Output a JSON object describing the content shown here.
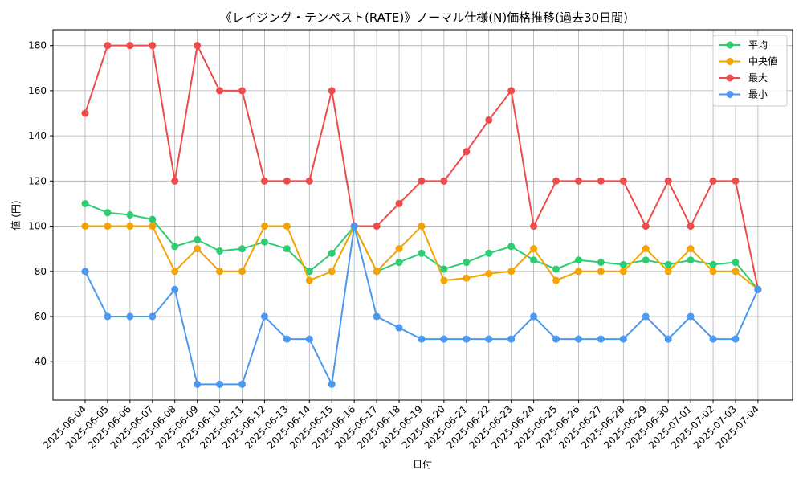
{
  "chart_data": {
    "type": "line",
    "title": "《レイジング・テンペスト(RATE)》ノーマル仕様(N)価格推移(過去30日間)",
    "xlabel": "日付",
    "ylabel": "値 (円)",
    "ylim": [
      23,
      187
    ],
    "yticks": [
      40,
      60,
      80,
      100,
      120,
      140,
      160,
      180
    ],
    "grid": true,
    "legend_position": "top-right",
    "categories": [
      "2025-06-04",
      "2025-06-05",
      "2025-06-06",
      "2025-06-07",
      "2025-06-08",
      "2025-06-09",
      "2025-06-10",
      "2025-06-11",
      "2025-06-12",
      "2025-06-13",
      "2025-06-14",
      "2025-06-15",
      "2025-06-16",
      "2025-06-17",
      "2025-06-18",
      "2025-06-19",
      "2025-06-20",
      "2025-06-21",
      "2025-06-22",
      "2025-06-23",
      "2025-06-24",
      "2025-06-25",
      "2025-06-26",
      "2025-06-27",
      "2025-06-28",
      "2025-06-29",
      "2025-06-30",
      "2025-07-01",
      "2025-07-02",
      "2025-07-03",
      "2025-07-04"
    ],
    "series": [
      {
        "name": "平均",
        "color": "#2ecc71",
        "values": [
          110,
          106,
          105,
          103,
          91,
          94,
          89,
          90,
          93,
          90,
          80,
          88,
          100,
          80,
          84,
          88,
          81,
          84,
          88,
          91,
          85,
          81,
          85,
          84,
          83,
          85,
          83,
          85,
          83,
          84,
          72
        ]
      },
      {
        "name": "中央値",
        "color": "#f5a300",
        "values": [
          100,
          100,
          100,
          100,
          80,
          90,
          80,
          80,
          100,
          100,
          76,
          80,
          100,
          80,
          90,
          100,
          76,
          77,
          79,
          80,
          90,
          76,
          80,
          80,
          80,
          90,
          80,
          90,
          80,
          80,
          72
        ]
      },
      {
        "name": "最大",
        "color": "#ef4b4b",
        "values": [
          150,
          180,
          180,
          180,
          120,
          180,
          160,
          160,
          120,
          120,
          120,
          160,
          100,
          100,
          110,
          120,
          120,
          133,
          147,
          160,
          100,
          120,
          120,
          120,
          120,
          100,
          120,
          100,
          120,
          120,
          72
        ]
      },
      {
        "name": "最小",
        "color": "#4a98f0",
        "values": [
          80,
          60,
          60,
          60,
          72,
          30,
          30,
          30,
          60,
          50,
          50,
          30,
          100,
          60,
          55,
          50,
          50,
          50,
          50,
          50,
          60,
          50,
          50,
          50,
          50,
          60,
          50,
          60,
          50,
          50,
          72
        ]
      }
    ]
  }
}
